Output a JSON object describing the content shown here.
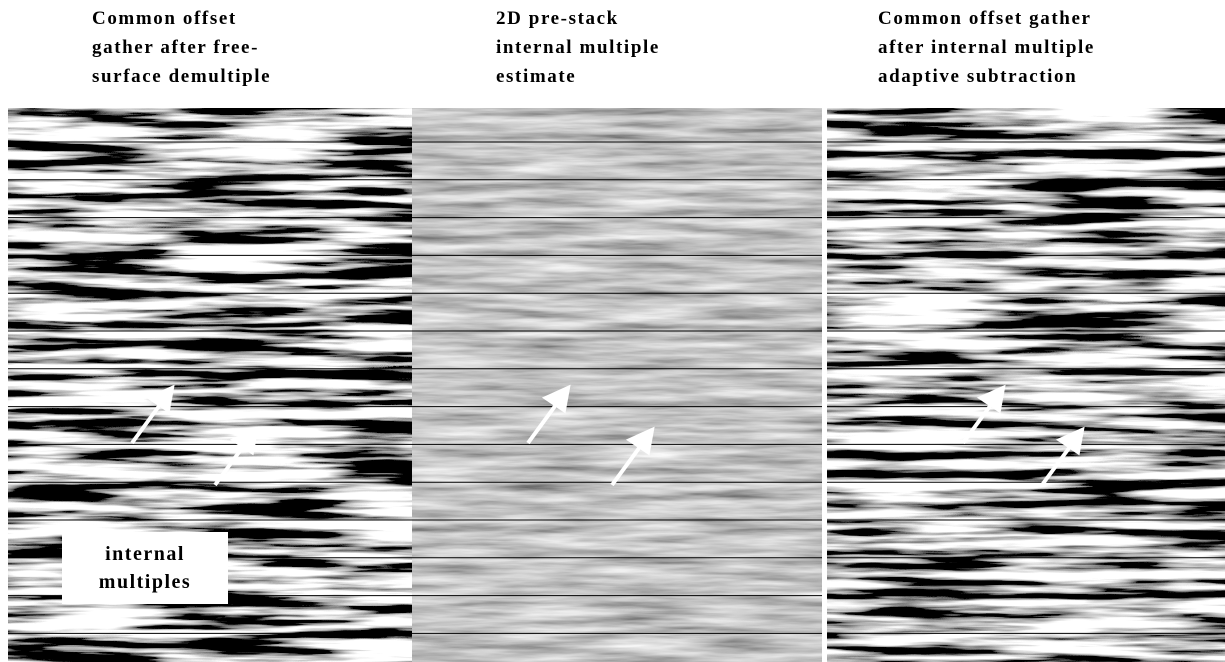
{
  "panels": [
    {
      "title_lines": [
        "Common offset",
        "gather after free-",
        "surface demultiple"
      ]
    },
    {
      "title_lines": [
        "2D pre-stack",
        "internal multiple",
        "estimate"
      ]
    },
    {
      "title_lines": [
        "Common offset gather",
        "after  internal multiple",
        "adaptive subtraction"
      ]
    }
  ],
  "label": {
    "lines": [
      "internal",
      "multiples"
    ]
  }
}
